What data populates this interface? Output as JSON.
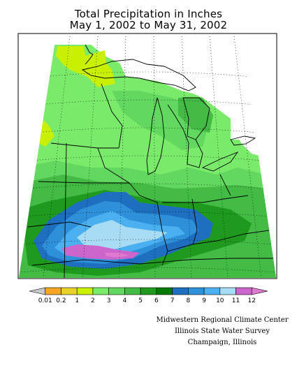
{
  "title": {
    "line1": "Total Precipitation in Inches",
    "line2": "May 1, 2002 to May 31, 2002"
  },
  "legend": {
    "labels": [
      "0.01",
      "0.2",
      "1",
      "2",
      "3",
      "4",
      "5",
      "6",
      "7",
      "8",
      "9",
      "10",
      "11",
      "12"
    ],
    "colors": [
      "#c8c8c8",
      "#f5a623",
      "#e8d22a",
      "#c8f000",
      "#7aea6a",
      "#62d860",
      "#44bb44",
      "#1f9a1f",
      "#007a00",
      "#1e6fbf",
      "#2e90d8",
      "#4ab0f0",
      "#a8dcf5",
      "#cc66cc",
      "#e07ad0"
    ]
  },
  "credits": {
    "line1": "Midwestern Regional Climate Center",
    "line2": "Illinois State Water Survey",
    "line3": "Champaign, Illinois"
  },
  "colors": {
    "light_green": "#7aea6a",
    "mid_green": "#44bb44",
    "dark_green": "#007a00",
    "yellow_green": "#c8f000",
    "blue": "#2e90d8",
    "light_blue": "#a8dcf5",
    "pink": "#cc66cc"
  }
}
